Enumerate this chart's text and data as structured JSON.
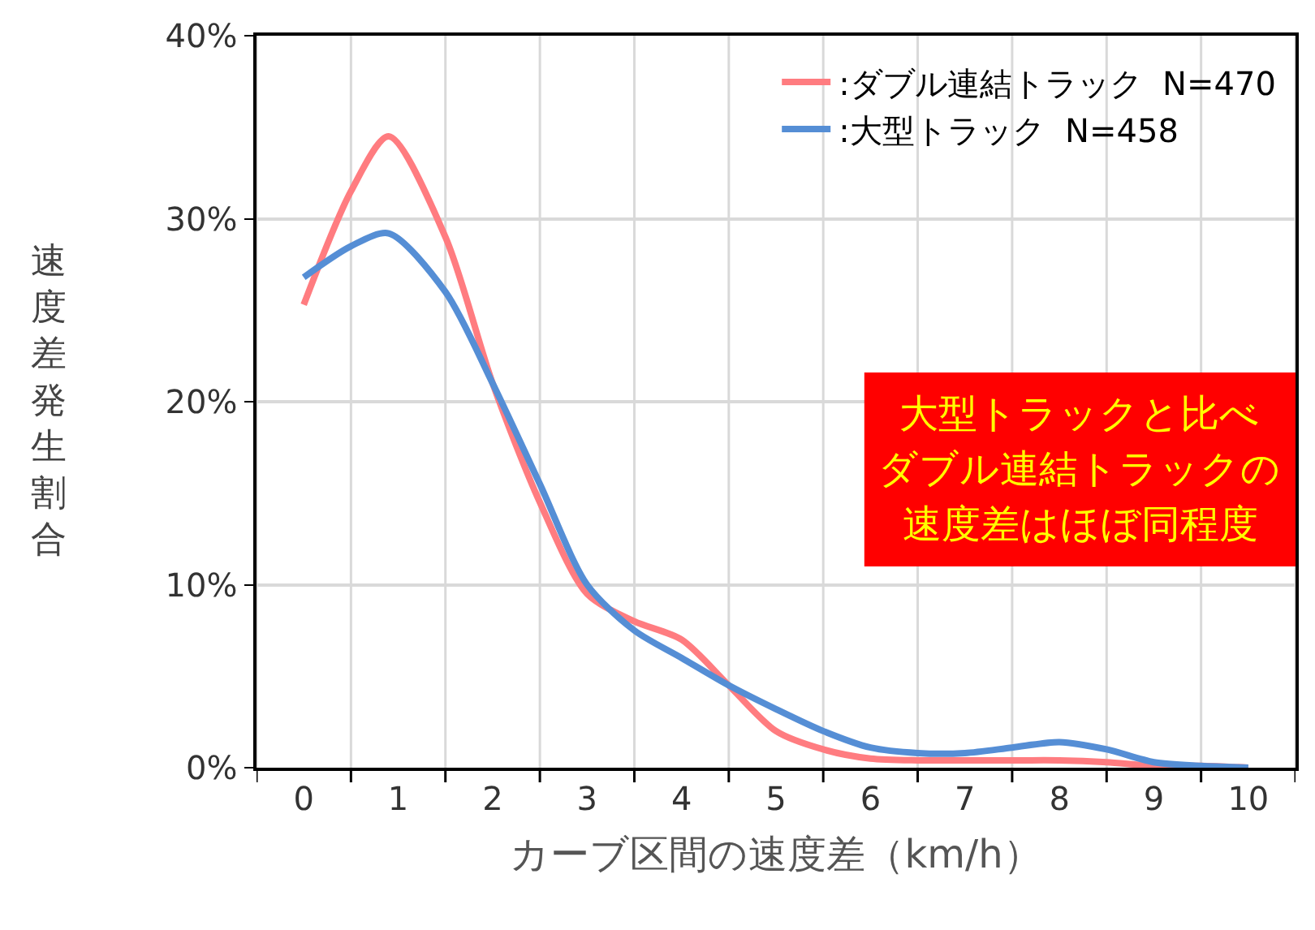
{
  "chart_data": {
    "type": "line",
    "xlabel": "カーブ区間の速度差（km/h）",
    "ylabel": "速度差発生割合",
    "x": [
      0,
      0.5,
      0.9,
      1.5,
      2,
      2.5,
      3,
      3.5,
      4,
      4.5,
      5,
      5.5,
      6,
      6.5,
      7,
      7.5,
      8,
      8.5,
      9,
      9.5,
      10
    ],
    "series": [
      {
        "name": ":ダブル連結トラック  N=470",
        "color": "#ff7c80",
        "values": [
          25.3,
          31.5,
          34.5,
          29,
          21,
          14.5,
          9.5,
          8,
          7,
          4.5,
          2,
          1,
          0.5,
          0.4,
          0.4,
          0.4,
          0.4,
          0.3,
          0.1,
          0.1,
          0
        ]
      },
      {
        "name": ":大型トラック  N=458",
        "color": "#558ed5",
        "values": [
          26.8,
          28.5,
          29.2,
          26,
          21,
          15.5,
          10,
          7.5,
          6,
          4.5,
          3.2,
          2,
          1.1,
          0.8,
          0.8,
          1.1,
          1.4,
          1,
          0.3,
          0.1,
          0
        ]
      }
    ],
    "xlim": [
      -0.5,
      10.5
    ],
    "xticks": [
      0,
      1,
      2,
      3,
      4,
      5,
      6,
      7,
      8,
      9,
      10,
      {
        "value": -0.5,
        "label": null
      },
      {
        "value": 0.5,
        "label": null
      },
      {
        "value": 1.5,
        "label": null
      },
      {
        "value": 2.5,
        "label": null
      },
      {
        "value": 3.5,
        "label": null
      },
      {
        "value": 4.5,
        "label": null
      },
      {
        "value": 5.5,
        "label": null
      },
      {
        "value": 6.5,
        "label": null
      },
      {
        "value": 7.5,
        "label": null
      },
      {
        "value": 8.5,
        "label": null
      },
      {
        "value": 9.5,
        "label": null
      },
      {
        "value": 10.5,
        "label": null
      }
    ],
    "ylim": [
      0,
      40
    ],
    "yticks": [
      {
        "value": 0,
        "label": "0%"
      },
      {
        "value": 10,
        "label": "10%"
      },
      {
        "value": 20,
        "label": "20%"
      },
      {
        "value": 30,
        "label": "30%"
      },
      {
        "value": 40,
        "label": "40%"
      }
    ],
    "grid": true,
    "legend": "top right",
    "marker": "none",
    "line_style": "solid",
    "annotations": [
      "大型トラックと比べ",
      "ダブル連結トラックの",
      "速度差はほぼ同程度"
    ]
  }
}
